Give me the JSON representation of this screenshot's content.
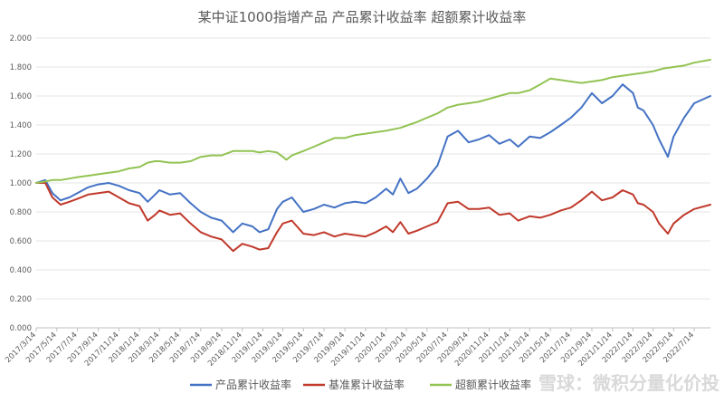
{
  "chart_data": {
    "type": "line",
    "title": "某中证1000指增产品 产品累计收益率 超额累计收益率",
    "xlabel": "",
    "ylabel": "",
    "ylim": [
      0,
      2.0
    ],
    "yticks": [
      0,
      0.2,
      0.4,
      0.6,
      0.8,
      1.0,
      1.2,
      1.4,
      1.6,
      1.8,
      2.0
    ],
    "ytick_labels": [
      "0.000",
      "0.200",
      "0.400",
      "0.600",
      "0.800",
      "1.000",
      "1.200",
      "1.400",
      "1.600",
      "1.800",
      "2.000"
    ],
    "xlim": [
      "2017-03-14",
      "2022-08-31"
    ],
    "xtick_dates": [
      "2017-03-14",
      "2017-05-14",
      "2017-07-14",
      "2017-09-14",
      "2017-11-14",
      "2018-01-14",
      "2018-03-14",
      "2018-05-14",
      "2018-07-14",
      "2018-09-14",
      "2018-11-14",
      "2019-01-14",
      "2019-03-14",
      "2019-05-14",
      "2019-07-14",
      "2019-09-14",
      "2019-11-14",
      "2020-01-14",
      "2020-03-14",
      "2020-05-14",
      "2020-07-14",
      "2020-09-14",
      "2020-11-14",
      "2021-01-14",
      "2021-03-14",
      "2021-05-14",
      "2021-07-14",
      "2021-09-14",
      "2021-11-14",
      "2022-01-14",
      "2022-03-14",
      "2022-05-14",
      "2022-07-14"
    ],
    "xtick_labels": [
      "2017/3/14",
      "2017/5/14",
      "2017/7/14",
      "2017/9/14",
      "2017/11/14",
      "2018/1/14",
      "2018/3/14",
      "2018/5/14",
      "2018/7/14",
      "2018/9/14",
      "2018/11/14",
      "2019/1/14",
      "2019/3/14",
      "2019/5/14",
      "2019/7/14",
      "2019/9/14",
      "2019/11/14",
      "2020/1/14",
      "2020/3/14",
      "2020/5/14",
      "2020/7/14",
      "2020/9/14",
      "2020/11/14",
      "2021/1/14",
      "2021/3/14",
      "2021/5/14",
      "2021/7/14",
      "2021/9/14",
      "2021/11/14",
      "2022/1/14",
      "2022/3/14",
      "2022/5/14",
      "2022/7/14"
    ],
    "grid": true,
    "legend": "bottom",
    "series": [
      {
        "name": "产品累计收益率",
        "color": "#4472c4",
        "points": [
          [
            "2017-03-14",
            1.0
          ],
          [
            "2017-04-10",
            1.02
          ],
          [
            "2017-05-01",
            0.93
          ],
          [
            "2017-05-25",
            0.88
          ],
          [
            "2017-06-20",
            0.9
          ],
          [
            "2017-07-14",
            0.93
          ],
          [
            "2017-08-15",
            0.97
          ],
          [
            "2017-09-14",
            0.99
          ],
          [
            "2017-10-15",
            1.0
          ],
          [
            "2017-11-14",
            0.98
          ],
          [
            "2017-12-14",
            0.95
          ],
          [
            "2018-01-14",
            0.93
          ],
          [
            "2018-02-07",
            0.87
          ],
          [
            "2018-03-01",
            0.92
          ],
          [
            "2018-03-14",
            0.95
          ],
          [
            "2018-04-14",
            0.92
          ],
          [
            "2018-05-14",
            0.93
          ],
          [
            "2018-06-14",
            0.86
          ],
          [
            "2018-07-14",
            0.8
          ],
          [
            "2018-08-14",
            0.76
          ],
          [
            "2018-09-14",
            0.74
          ],
          [
            "2018-10-18",
            0.66
          ],
          [
            "2018-11-14",
            0.72
          ],
          [
            "2018-12-14",
            0.7
          ],
          [
            "2019-01-04",
            0.66
          ],
          [
            "2019-01-30",
            0.68
          ],
          [
            "2019-02-25",
            0.82
          ],
          [
            "2019-03-14",
            0.87
          ],
          [
            "2019-04-10",
            0.9
          ],
          [
            "2019-05-14",
            0.8
          ],
          [
            "2019-06-14",
            0.82
          ],
          [
            "2019-07-14",
            0.85
          ],
          [
            "2019-08-14",
            0.83
          ],
          [
            "2019-09-14",
            0.86
          ],
          [
            "2019-10-14",
            0.87
          ],
          [
            "2019-11-14",
            0.86
          ],
          [
            "2019-12-14",
            0.9
          ],
          [
            "2020-01-14",
            0.96
          ],
          [
            "2020-02-03",
            0.92
          ],
          [
            "2020-02-25",
            1.03
          ],
          [
            "2020-03-20",
            0.93
          ],
          [
            "2020-04-14",
            0.96
          ],
          [
            "2020-05-14",
            1.03
          ],
          [
            "2020-06-14",
            1.12
          ],
          [
            "2020-07-14",
            1.32
          ],
          [
            "2020-08-14",
            1.36
          ],
          [
            "2020-09-14",
            1.28
          ],
          [
            "2020-10-14",
            1.3
          ],
          [
            "2020-11-14",
            1.33
          ],
          [
            "2020-12-14",
            1.27
          ],
          [
            "2021-01-14",
            1.3
          ],
          [
            "2021-02-08",
            1.25
          ],
          [
            "2021-03-14",
            1.32
          ],
          [
            "2021-04-14",
            1.31
          ],
          [
            "2021-05-14",
            1.35
          ],
          [
            "2021-06-14",
            1.4
          ],
          [
            "2021-07-14",
            1.45
          ],
          [
            "2021-08-14",
            1.52
          ],
          [
            "2021-09-14",
            1.62
          ],
          [
            "2021-10-14",
            1.55
          ],
          [
            "2021-11-14",
            1.6
          ],
          [
            "2021-12-14",
            1.68
          ],
          [
            "2022-01-14",
            1.62
          ],
          [
            "2022-01-28",
            1.52
          ],
          [
            "2022-02-14",
            1.5
          ],
          [
            "2022-03-14",
            1.4
          ],
          [
            "2022-04-01",
            1.3
          ],
          [
            "2022-04-27",
            1.18
          ],
          [
            "2022-05-14",
            1.32
          ],
          [
            "2022-06-14",
            1.45
          ],
          [
            "2022-07-14",
            1.55
          ],
          [
            "2022-08-31",
            1.6
          ]
        ]
      },
      {
        "name": "基准累计收益率",
        "color": "#c0392b",
        "points": [
          [
            "2017-03-14",
            1.0
          ],
          [
            "2017-04-10",
            1.0
          ],
          [
            "2017-05-01",
            0.9
          ],
          [
            "2017-05-25",
            0.85
          ],
          [
            "2017-06-20",
            0.87
          ],
          [
            "2017-07-14",
            0.89
          ],
          [
            "2017-08-15",
            0.92
          ],
          [
            "2017-09-14",
            0.93
          ],
          [
            "2017-10-15",
            0.94
          ],
          [
            "2017-11-14",
            0.9
          ],
          [
            "2017-12-14",
            0.86
          ],
          [
            "2018-01-14",
            0.84
          ],
          [
            "2018-02-07",
            0.74
          ],
          [
            "2018-03-01",
            0.78
          ],
          [
            "2018-03-14",
            0.81
          ],
          [
            "2018-04-14",
            0.78
          ],
          [
            "2018-05-14",
            0.79
          ],
          [
            "2018-06-14",
            0.72
          ],
          [
            "2018-07-14",
            0.66
          ],
          [
            "2018-08-14",
            0.63
          ],
          [
            "2018-09-14",
            0.61
          ],
          [
            "2018-10-18",
            0.53
          ],
          [
            "2018-11-14",
            0.58
          ],
          [
            "2018-12-14",
            0.56
          ],
          [
            "2019-01-04",
            0.54
          ],
          [
            "2019-01-30",
            0.55
          ],
          [
            "2019-02-25",
            0.66
          ],
          [
            "2019-03-14",
            0.72
          ],
          [
            "2019-04-10",
            0.74
          ],
          [
            "2019-05-14",
            0.65
          ],
          [
            "2019-06-14",
            0.64
          ],
          [
            "2019-07-14",
            0.66
          ],
          [
            "2019-08-14",
            0.63
          ],
          [
            "2019-09-14",
            0.65
          ],
          [
            "2019-10-14",
            0.64
          ],
          [
            "2019-11-14",
            0.63
          ],
          [
            "2019-12-14",
            0.66
          ],
          [
            "2020-01-14",
            0.7
          ],
          [
            "2020-02-03",
            0.66
          ],
          [
            "2020-02-25",
            0.73
          ],
          [
            "2020-03-20",
            0.65
          ],
          [
            "2020-04-14",
            0.67
          ],
          [
            "2020-05-14",
            0.7
          ],
          [
            "2020-06-14",
            0.73
          ],
          [
            "2020-07-14",
            0.86
          ],
          [
            "2020-08-14",
            0.87
          ],
          [
            "2020-09-14",
            0.82
          ],
          [
            "2020-10-14",
            0.82
          ],
          [
            "2020-11-14",
            0.83
          ],
          [
            "2020-12-14",
            0.78
          ],
          [
            "2021-01-14",
            0.79
          ],
          [
            "2021-02-08",
            0.74
          ],
          [
            "2021-03-14",
            0.77
          ],
          [
            "2021-04-14",
            0.76
          ],
          [
            "2021-05-14",
            0.78
          ],
          [
            "2021-06-14",
            0.81
          ],
          [
            "2021-07-14",
            0.83
          ],
          [
            "2021-08-14",
            0.88
          ],
          [
            "2021-09-14",
            0.94
          ],
          [
            "2021-10-14",
            0.88
          ],
          [
            "2021-11-14",
            0.9
          ],
          [
            "2021-12-14",
            0.95
          ],
          [
            "2022-01-14",
            0.92
          ],
          [
            "2022-01-28",
            0.86
          ],
          [
            "2022-02-14",
            0.85
          ],
          [
            "2022-03-14",
            0.8
          ],
          [
            "2022-04-01",
            0.72
          ],
          [
            "2022-04-27",
            0.65
          ],
          [
            "2022-05-14",
            0.72
          ],
          [
            "2022-06-14",
            0.78
          ],
          [
            "2022-07-14",
            0.82
          ],
          [
            "2022-08-31",
            0.85
          ]
        ]
      },
      {
        "name": "超额累计收益率",
        "color": "#92c353",
        "points": [
          [
            "2017-03-14",
            1.0
          ],
          [
            "2017-04-10",
            1.01
          ],
          [
            "2017-05-01",
            1.02
          ],
          [
            "2017-05-25",
            1.02
          ],
          [
            "2017-06-20",
            1.03
          ],
          [
            "2017-07-14",
            1.04
          ],
          [
            "2017-08-15",
            1.05
          ],
          [
            "2017-09-14",
            1.06
          ],
          [
            "2017-10-15",
            1.07
          ],
          [
            "2017-11-14",
            1.08
          ],
          [
            "2017-12-14",
            1.1
          ],
          [
            "2018-01-14",
            1.11
          ],
          [
            "2018-02-07",
            1.14
          ],
          [
            "2018-03-01",
            1.15
          ],
          [
            "2018-03-14",
            1.15
          ],
          [
            "2018-04-14",
            1.14
          ],
          [
            "2018-05-14",
            1.14
          ],
          [
            "2018-06-14",
            1.15
          ],
          [
            "2018-07-14",
            1.18
          ],
          [
            "2018-08-14",
            1.19
          ],
          [
            "2018-09-14",
            1.19
          ],
          [
            "2018-10-18",
            1.22
          ],
          [
            "2018-11-14",
            1.22
          ],
          [
            "2018-12-14",
            1.22
          ],
          [
            "2019-01-04",
            1.21
          ],
          [
            "2019-01-30",
            1.22
          ],
          [
            "2019-02-25",
            1.21
          ],
          [
            "2019-03-14",
            1.18
          ],
          [
            "2019-03-25",
            1.16
          ],
          [
            "2019-04-10",
            1.19
          ],
          [
            "2019-05-14",
            1.22
          ],
          [
            "2019-06-14",
            1.25
          ],
          [
            "2019-07-14",
            1.28
          ],
          [
            "2019-08-14",
            1.31
          ],
          [
            "2019-09-14",
            1.31
          ],
          [
            "2019-10-14",
            1.33
          ],
          [
            "2019-11-14",
            1.34
          ],
          [
            "2019-12-14",
            1.35
          ],
          [
            "2020-01-14",
            1.36
          ],
          [
            "2020-02-03",
            1.37
          ],
          [
            "2020-02-25",
            1.38
          ],
          [
            "2020-03-20",
            1.4
          ],
          [
            "2020-04-14",
            1.42
          ],
          [
            "2020-05-14",
            1.45
          ],
          [
            "2020-06-14",
            1.48
          ],
          [
            "2020-07-14",
            1.52
          ],
          [
            "2020-08-14",
            1.54
          ],
          [
            "2020-09-14",
            1.55
          ],
          [
            "2020-10-14",
            1.56
          ],
          [
            "2020-11-14",
            1.58
          ],
          [
            "2020-12-14",
            1.6
          ],
          [
            "2021-01-14",
            1.62
          ],
          [
            "2021-02-08",
            1.62
          ],
          [
            "2021-03-14",
            1.64
          ],
          [
            "2021-04-14",
            1.68
          ],
          [
            "2021-05-14",
            1.72
          ],
          [
            "2021-06-14",
            1.71
          ],
          [
            "2021-07-14",
            1.7
          ],
          [
            "2021-08-14",
            1.69
          ],
          [
            "2021-09-14",
            1.7
          ],
          [
            "2021-10-14",
            1.71
          ],
          [
            "2021-11-14",
            1.73
          ],
          [
            "2021-12-14",
            1.74
          ],
          [
            "2022-01-14",
            1.75
          ],
          [
            "2022-02-14",
            1.76
          ],
          [
            "2022-03-14",
            1.77
          ],
          [
            "2022-04-14",
            1.79
          ],
          [
            "2022-05-14",
            1.8
          ],
          [
            "2022-06-14",
            1.81
          ],
          [
            "2022-07-14",
            1.83
          ],
          [
            "2022-08-31",
            1.85
          ]
        ]
      }
    ],
    "watermark": "雪球：微积分量化价投"
  }
}
